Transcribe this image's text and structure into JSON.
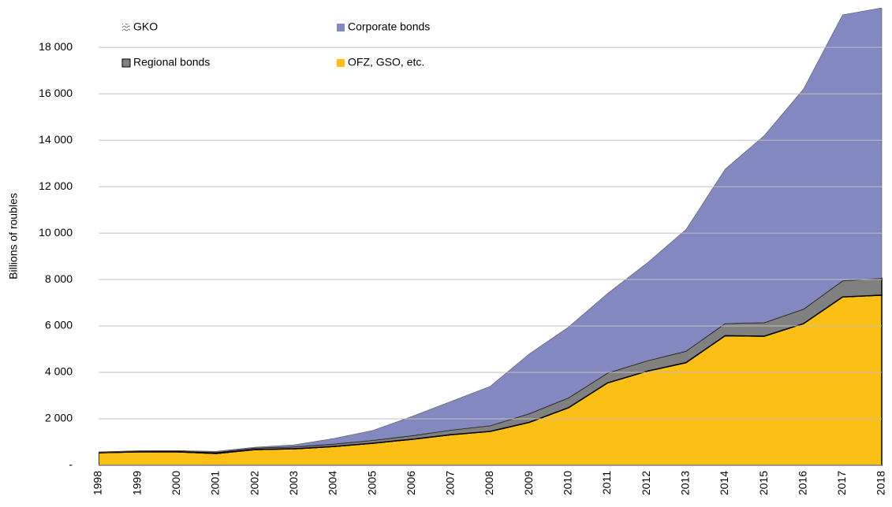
{
  "chart_data": {
    "type": "stacked_area",
    "y_label": "Billions of roubles",
    "categories": [
      "1998",
      "1999",
      "2000",
      "2001",
      "2002",
      "2003",
      "2004",
      "2005",
      "2006",
      "2007",
      "2008",
      "2009",
      "2010",
      "2011",
      "2012",
      "2013",
      "2014",
      "2015",
      "2016",
      "2017",
      "2018"
    ],
    "series": [
      {
        "name": "OFZ, GSO, etc.",
        "color": "#fbbf15",
        "values": [
          540,
          580,
          580,
          510,
          680,
          710,
          810,
          950,
          1120,
          1320,
          1460,
          1850,
          2480,
          3550,
          4050,
          4420,
          5580,
          5560,
          6100,
          7250,
          7330
        ]
      },
      {
        "name": "GKO",
        "color": "#ffffff",
        "values": [
          0,
          0,
          0,
          0,
          0,
          0,
          0,
          0,
          0,
          0,
          0,
          0,
          0,
          0,
          0,
          0,
          0,
          0,
          0,
          0,
          0
        ]
      },
      {
        "name": "Regional bonds",
        "color": "#808080",
        "values": [
          20,
          30,
          40,
          50,
          70,
          90,
          110,
          130,
          160,
          200,
          250,
          380,
          430,
          430,
          450,
          500,
          530,
          590,
          630,
          700,
          730
        ]
      },
      {
        "name": "Corporate bonds",
        "color": "#8488c0",
        "values": [
          10,
          10,
          10,
          40,
          30,
          80,
          230,
          420,
          820,
          1230,
          1690,
          2570,
          3040,
          3420,
          4200,
          5230,
          6640,
          8050,
          9470,
          11450,
          11640
        ]
      }
    ],
    "ylim": [
      0,
      19700
    ],
    "yticks": [
      {
        "value": 0,
        "label": "-"
      },
      {
        "value": 2000,
        "label": "2 000"
      },
      {
        "value": 4000,
        "label": "4 000"
      },
      {
        "value": 6000,
        "label": "6 000"
      },
      {
        "value": 8000,
        "label": "8 000"
      },
      {
        "value": 10000,
        "label": "10 000"
      },
      {
        "value": 12000,
        "label": "12 000"
      },
      {
        "value": 14000,
        "label": "14 000"
      },
      {
        "value": 16000,
        "label": "16 000"
      },
      {
        "value": 18000,
        "label": "18 000"
      }
    ],
    "grid": true
  }
}
